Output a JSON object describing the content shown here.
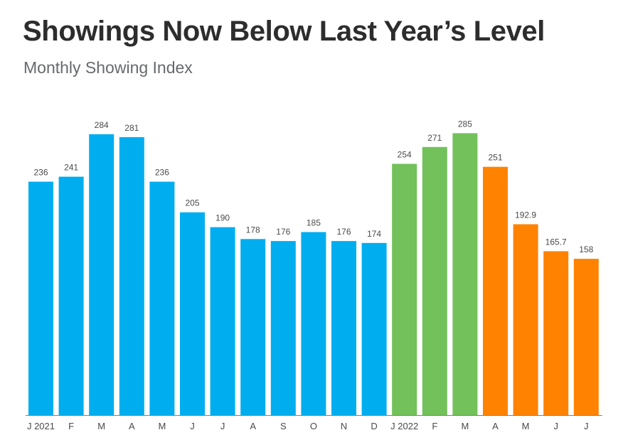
{
  "header": {
    "title": "Showings Now Below Last Year’s Level",
    "subtitle": "Monthly Showing Index"
  },
  "chart_data": {
    "type": "bar",
    "title": "Showings Now Below Last Year’s Level",
    "subtitle": "Monthly Showing Index",
    "xlabel": "",
    "ylabel": "",
    "ylim": [
      0,
      300
    ],
    "grid": false,
    "categories": [
      "J 2021",
      "F",
      "M",
      "A",
      "M",
      "J",
      "J",
      "A",
      "S",
      "O",
      "N",
      "D",
      "J 2022",
      "F",
      "M",
      "A",
      "M",
      "J",
      "J"
    ],
    "values": [
      236,
      241,
      284,
      281,
      236,
      205,
      190,
      178,
      176,
      185,
      176,
      174,
      254,
      271,
      285,
      251,
      192.9,
      165.7,
      158
    ],
    "value_labels": [
      "236",
      "241",
      "284",
      "281",
      "236",
      "205",
      "190",
      "178",
      "176",
      "185",
      "176",
      "174",
      "254",
      "271",
      "285",
      "251",
      "192.9",
      "165.7",
      "158"
    ],
    "bar_colors": [
      "#00aeef",
      "#00aeef",
      "#00aeef",
      "#00aeef",
      "#00aeef",
      "#00aeef",
      "#00aeef",
      "#00aeef",
      "#00aeef",
      "#00aeef",
      "#00aeef",
      "#00aeef",
      "#72c15a",
      "#72c15a",
      "#72c15a",
      "#ff8200",
      "#ff8200",
      "#ff8200",
      "#ff8200"
    ]
  }
}
